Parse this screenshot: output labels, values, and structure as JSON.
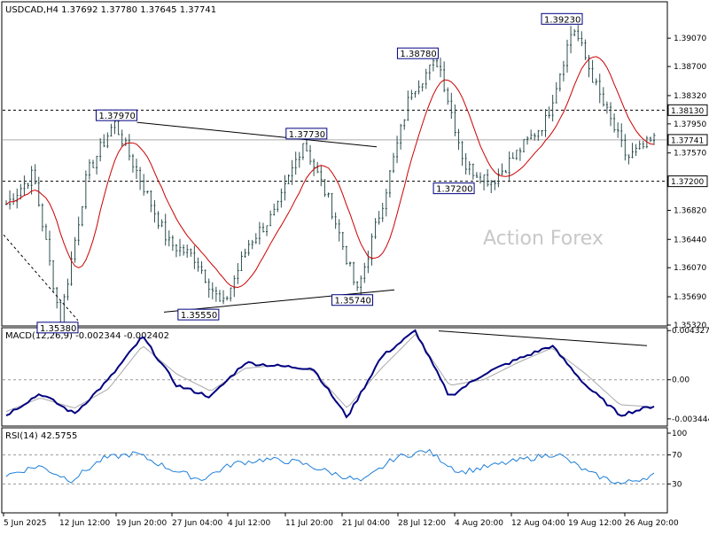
{
  "header": {
    "symbol_line": "USDCAD,H4  1.37692 1.37780 1.37645 1.37741"
  },
  "watermark": "Action Forex",
  "colors": {
    "candles": "#2f4f4f",
    "ma": "#cc0000",
    "macd": "#000080",
    "signal": "#a9a9a9",
    "rsi": "#1e7fd8",
    "label_border": "#000080",
    "grid": "#000000"
  },
  "chart_data": [
    {
      "type": "candlestick",
      "title": "USDCAD,H4",
      "ohlc_last": {
        "open": 1.37692,
        "high": 1.3778,
        "low": 1.37645,
        "close": 1.37741
      },
      "ylim": [
        1.3532,
        1.395
      ],
      "y_ticks": [
        "1.39070",
        "1.38700",
        "1.38320",
        "1.37950",
        "1.37570",
        "1.37200",
        "1.36820",
        "1.36440",
        "1.36070",
        "1.35690",
        "1.35320"
      ],
      "y_tick_values": [
        1.3907,
        1.387,
        1.3832,
        1.3795,
        1.3757,
        1.372,
        1.3682,
        1.3644,
        1.3607,
        1.3569,
        1.3532
      ],
      "horizontal_levels": [
        {
          "value": 1.3813,
          "label": "1.38130",
          "style": "dashed"
        },
        {
          "value": 1.372,
          "label": "1.37200",
          "style": "dashed"
        },
        {
          "value": 1.37741,
          "label": "1.37741",
          "style": "solid-gray"
        }
      ],
      "swing_labels": [
        {
          "label": "1.35380",
          "value": 1.3538
        },
        {
          "label": "1.37970",
          "value": 1.3797
        },
        {
          "label": "1.35550",
          "value": 1.3555
        },
        {
          "label": "1.37730",
          "value": 1.3773
        },
        {
          "label": "1.35740",
          "value": 1.3574
        },
        {
          "label": "1.38780",
          "value": 1.3878
        },
        {
          "label": "1.37200",
          "value": 1.372
        },
        {
          "label": "1.39230",
          "value": 1.3923
        }
      ],
      "x_tick_labels": [
        "5 Jun 2025",
        "12 Jun 12:00",
        "19 Jun 20:00",
        "27 Jun 04:00",
        "4 Jul 12:00",
        "11 Jul 20:00",
        "21 Jul 04:00",
        "28 Jul 12:00",
        "4 Aug 20:00",
        "12 Aug 04:00",
        "19 Aug 12:00",
        "26 Aug 20:00"
      ],
      "price_path_keypoints": [
        {
          "x": "5 Jun 2025",
          "close": 1.369
        },
        {
          "x": "8 Jun",
          "close": 1.373
        },
        {
          "x": "12 Jun 12:00",
          "close": 1.3538
        },
        {
          "x": "16 Jun",
          "close": 1.373
        },
        {
          "x": "18 Jun",
          "close": 1.3797
        },
        {
          "x": "21 Jun",
          "close": 1.372
        },
        {
          "x": "24 Jun",
          "close": 1.364
        },
        {
          "x": "27 Jun 04:00",
          "close": 1.362
        },
        {
          "x": "1 Jul",
          "close": 1.3555
        },
        {
          "x": "4 Jul 12:00",
          "close": 1.364
        },
        {
          "x": "8 Jul",
          "close": 1.368
        },
        {
          "x": "14 Jul",
          "close": 1.3773
        },
        {
          "x": "18 Jul",
          "close": 1.369
        },
        {
          "x": "21 Jul 04:00",
          "close": 1.3574
        },
        {
          "x": "24 Jul",
          "close": 1.37
        },
        {
          "x": "28 Jul 12:00",
          "close": 1.384
        },
        {
          "x": "31 Jul",
          "close": 1.3878
        },
        {
          "x": "4 Aug 20:00",
          "close": 1.374
        },
        {
          "x": "7 Aug",
          "close": 1.372
        },
        {
          "x": "12 Aug 04:00",
          "close": 1.376
        },
        {
          "x": "16 Aug",
          "close": 1.38
        },
        {
          "x": "19 Aug 12:00",
          "close": 1.3923
        },
        {
          "x": "22 Aug",
          "close": 1.383
        },
        {
          "x": "26 Aug 20:00",
          "close": 1.375
        },
        {
          "x": "29 Aug",
          "close": 1.3774
        }
      ]
    },
    {
      "type": "line",
      "title": "MACD(12,26,9) -0.002344 -0.002402",
      "series_names": [
        "MACD",
        "Signal"
      ],
      "ylim": [
        -0.004,
        0.0045
      ],
      "y_ticks": [
        "0.004327",
        "0.00",
        "-0.003444"
      ],
      "y_tick_values": [
        0.004327,
        0.0,
        -0.003444
      ],
      "macd_keypoints": [
        -0.0031,
        -0.0012,
        -0.003,
        0.0,
        0.0038,
        -0.0005,
        -0.0015,
        0.0015,
        0.0012,
        0.001,
        -0.0033,
        0.002,
        0.0043,
        -0.0015,
        0.0005,
        0.0018,
        0.003,
        -0.0005,
        -0.0031,
        -0.0023
      ],
      "signal_keypoints": [
        -0.0028,
        -0.0016,
        -0.0025,
        -0.0008,
        0.003,
        0.0005,
        -0.001,
        0.001,
        0.0013,
        0.0008,
        -0.0025,
        0.001,
        0.004,
        -0.0005,
        0.0,
        0.0015,
        0.0028,
        0.0005,
        -0.0022,
        -0.0024
      ]
    },
    {
      "type": "line",
      "title": "RSI(14) 42.5755",
      "series_names": [
        "RSI"
      ],
      "ylim": [
        0,
        100
      ],
      "y_ticks": [
        "100",
        "70",
        "30",
        "0"
      ],
      "y_tick_values": [
        100,
        70,
        30,
        0
      ],
      "keypoints": [
        42,
        55,
        35,
        65,
        72,
        52,
        36,
        58,
        64,
        60,
        46,
        33,
        66,
        76,
        46,
        55,
        64,
        72,
        45,
        30,
        42.58
      ]
    }
  ]
}
